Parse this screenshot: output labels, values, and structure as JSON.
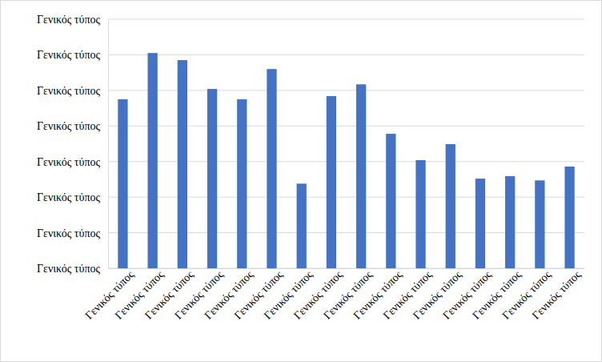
{
  "chart_data": {
    "type": "bar",
    "categories": [
      "Γενικός τύπος",
      "Γενικός τύπος",
      "Γενικός τύπος",
      "Γενικός τύπος",
      "Γενικός τύπος",
      "Γενικός τύπος",
      "Γενικός τύπος",
      "Γενικός τύπος",
      "Γενικός τύπος",
      "Γενικός τύπος",
      "Γενικός τύπος",
      "Γενικός τύπος",
      "Γενικός τύπος",
      "Γενικός τύπος",
      "Γενικός τύπος",
      "Γενικός τύπος"
    ],
    "values": [
      4.75,
      6.05,
      5.85,
      5.04,
      4.75,
      5.6,
      2.38,
      4.84,
      5.17,
      3.78,
      3.04,
      3.49,
      2.52,
      2.59,
      2.47,
      2.86
    ],
    "color": "#4472c4",
    "ylim": [
      0,
      7
    ],
    "yticks": [
      {
        "value": 0,
        "label": "Γενικός τύπος"
      },
      {
        "value": 1,
        "label": "Γενικός τύπος"
      },
      {
        "value": 2,
        "label": "Γενικός τύπος"
      },
      {
        "value": 3,
        "label": "Γενικός τύπος"
      },
      {
        "value": 4,
        "label": "Γενικός τύπος"
      },
      {
        "value": 5,
        "label": "Γενικός τύπος"
      },
      {
        "value": 6,
        "label": "Γενικός τύπος"
      },
      {
        "value": 7,
        "label": "Γενικός τύπος"
      }
    ],
    "grid": true
  }
}
